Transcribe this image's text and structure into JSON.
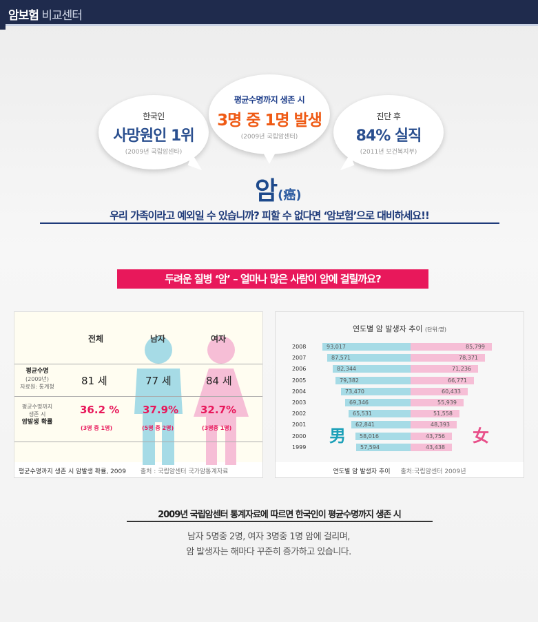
{
  "header": {
    "bold": "암보험",
    "light": " 비교센터"
  },
  "bubbles": [
    {
      "line1": "한국인",
      "line2": "사망원인 1위",
      "line3": "(2009년 국립암센타)"
    },
    {
      "line1": "평균수명까지 생존 시",
      "line2": "3명 중 1명 발생",
      "line3": "(2009년 국립암센터)"
    },
    {
      "line1": "진단 후",
      "line2": "84% 실직",
      "line3": "(2011년 보건복지부)"
    }
  ],
  "am": {
    "main": "암",
    "hanja": "(癌)"
  },
  "tagline": "우리 가족이라고 예외일 수 있습니까?  피할 수 없다면 ‘암보험’으로  대비하세요!!",
  "pinkbar": "두려운 질병 ‘암’ – 얼마나 많은 사람이 암에 걸릴까요?",
  "table": {
    "columns": [
      "전체",
      "남자",
      "여자"
    ],
    "row1": {
      "label_bold": "평균수명",
      "label_sub1": "(2009년)",
      "label_sub2": "자료원: 통계청",
      "values": [
        "81 세",
        "77 세",
        "84 세"
      ]
    },
    "row2": {
      "label1": "평균수명까지",
      "label2": "생존 시",
      "label_bold": "암발생 확률",
      "values": [
        "36.2 %",
        "37.9%",
        "32.7%"
      ],
      "subs": [
        "(3명 중 1명)",
        "(5명 중 2명)",
        "(3명중 1명)"
      ]
    },
    "footer": "평균수명까지 생존 시 암발생 확률, 2009",
    "source": "출처 : 국립암센터 국가암통계자료",
    "colors": {
      "male": "#a6dbe6",
      "female": "#f6bed6"
    }
  },
  "chart_data": {
    "type": "bar",
    "title": "연도별 암 발생자 추이",
    "unit": "(단위:명)",
    "categories": [
      "2008",
      "2007",
      "2006",
      "2005",
      "2004",
      "2003",
      "2002",
      "2001",
      "2000",
      "1999"
    ],
    "series": [
      {
        "name": "男",
        "values": [
          93017,
          87571,
          82344,
          79382,
          73470,
          69346,
          65531,
          62841,
          58016,
          57594
        ],
        "labels": [
          "93,017",
          "87,571",
          "82,344",
          "79,382",
          "73,470",
          "69,346",
          "65,531",
          "62,841",
          "58,016",
          "57,594"
        ],
        "color": "#a6dbe6"
      },
      {
        "name": "女",
        "values": [
          85799,
          78371,
          71236,
          66771,
          60433,
          55939,
          51558,
          48393,
          43756,
          43438
        ],
        "labels": [
          "85,799",
          "78,371",
          "71,236",
          "66,771",
          "60,433",
          "55,939",
          "51,558",
          "48,393",
          "43,756",
          "43,438"
        ],
        "color": "#f6bed6"
      }
    ],
    "footer": "연도별 암 발생자 추이",
    "source": "출처:국립암센터 2009년"
  },
  "bottom": {
    "title": "2009년 국립암센터 통계자료에 따르면 한국인이 평균수명까지 생존 시",
    "line1": "남자 5명중 2명, 여자 3명중 1명 암에 걸리며,",
    "line2": "암 발생자는 해마다 꾸준히 증가하고 있습니다."
  }
}
